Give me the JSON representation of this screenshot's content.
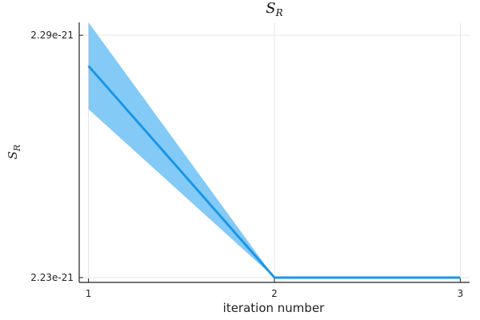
{
  "chart_data": {
    "type": "line",
    "title": "S",
    "title_subscript": "R",
    "xlabel": "iteration number",
    "ylabel": "S",
    "ylabel_subscript": "R",
    "x": [
      1,
      2,
      3
    ],
    "xticks": [
      "1",
      "2",
      "3"
    ],
    "yticks": [
      {
        "value": 2.29e-21,
        "label": "2.29e-21"
      },
      {
        "value": 2.23e-21,
        "label": "2.23e-21"
      }
    ],
    "xlim": [
      0.95,
      3.05
    ],
    "ylim": [
      2.2288e-21,
      2.2932e-21
    ],
    "grid": true,
    "legend": "none",
    "series": [
      {
        "values": [
          2.2824e-21,
          2.23e-21,
          2.23e-21
        ],
        "lower": [
          2.2717e-21,
          2.23e-21,
          2.23e-21
        ],
        "upper": [
          2.2932e-21,
          2.23e-21,
          2.23e-21
        ],
        "color": "#1a96e6",
        "band_color": "#84caf7"
      }
    ],
    "axis_color": "#222222",
    "grid_color": "#e6e6e6"
  }
}
